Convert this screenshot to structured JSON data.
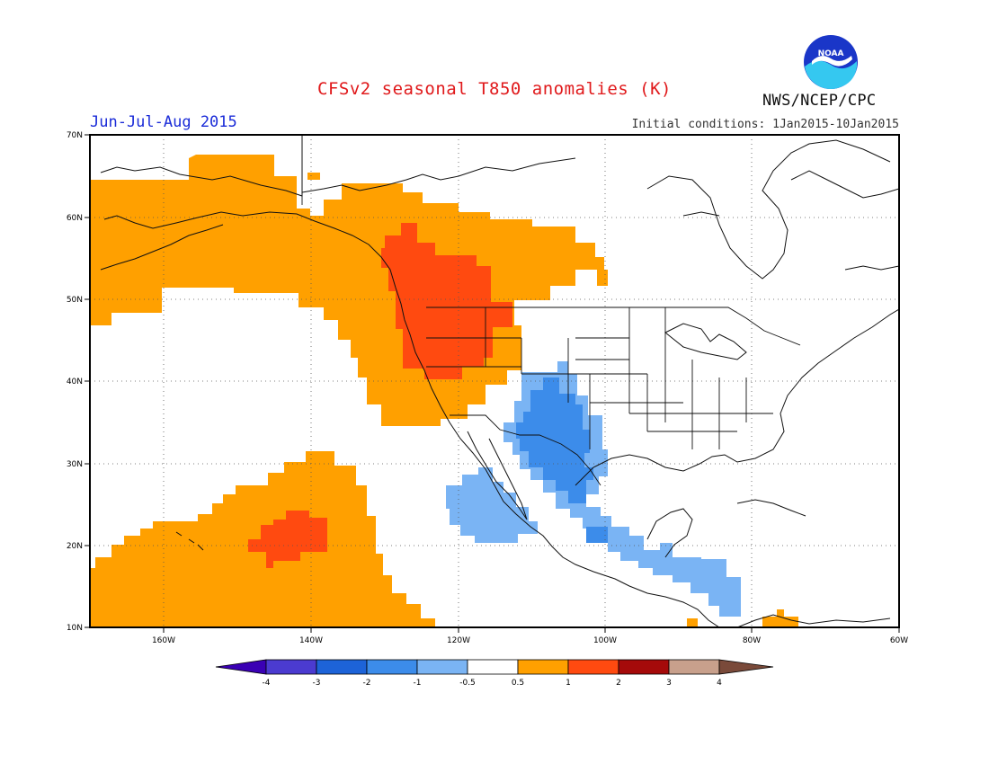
{
  "header": {
    "title": "CFSv2 seasonal T850 anomalies (K)",
    "period": "Jun-Jul-Aug 2015",
    "initial_conditions": "Initial conditions: 1Jan2015-10Jan2015",
    "agency": "NWS/NCEP/CPC",
    "logo_text": "NOAA"
  },
  "map": {
    "lon_labels": [
      "160W",
      "140W",
      "120W",
      "100W",
      "80W",
      "60W"
    ],
    "lat_labels": [
      "70N",
      "60N",
      "50N",
      "40N",
      "30N",
      "20N",
      "10N"
    ]
  },
  "colorbar": {
    "labels": [
      "-4",
      "-3",
      "-2",
      "-1",
      "-0.5",
      "0.5",
      "1",
      "2",
      "3",
      "4"
    ],
    "colors": [
      "#3a00b4",
      "#4b3bd0",
      "#1d63d8",
      "#3c8cea",
      "#7ab4f4",
      "#ffffff",
      "#ffa000",
      "#ff4a10",
      "#a50a0a",
      "#c8a08c",
      "#7a4a3a"
    ]
  }
}
